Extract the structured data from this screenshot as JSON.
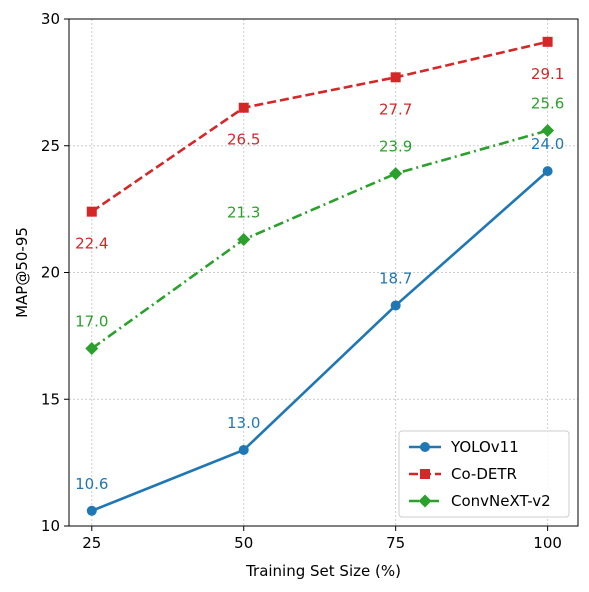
{
  "chart_data": {
    "type": "line",
    "title": "",
    "xlabel": "Training Set Size (%)",
    "ylabel": "MAP@50-95",
    "x": [
      25,
      50,
      75,
      100
    ],
    "xticks": [
      "25",
      "50",
      "75",
      "100"
    ],
    "yticks": [
      "10",
      "15",
      "20",
      "25",
      "30"
    ],
    "xlim": [
      21.25,
      105
    ],
    "ylim": [
      10,
      30
    ],
    "grid": true,
    "legend_position": "lower-right",
    "series": [
      {
        "name": "YOLOv11",
        "values": [
          10.6,
          13.0,
          18.7,
          24.0
        ],
        "labels": [
          "10.6",
          "13.0",
          "18.7",
          "24.0"
        ],
        "color": "#1f77b4",
        "linestyle": "solid",
        "marker": "circle"
      },
      {
        "name": "Co-DETR",
        "values": [
          22.4,
          26.5,
          27.7,
          29.1
        ],
        "labels": [
          "22.4",
          "26.5",
          "27.7",
          "29.1"
        ],
        "color": "#d62728",
        "linestyle": "dashed",
        "marker": "square"
      },
      {
        "name": "ConvNeXT-v2",
        "values": [
          17.0,
          21.3,
          23.9,
          25.6
        ],
        "labels": [
          "17.0",
          "21.3",
          "23.9",
          "25.6"
        ],
        "color": "#2ca02c",
        "linestyle": "dashdot",
        "marker": "diamond"
      }
    ]
  }
}
